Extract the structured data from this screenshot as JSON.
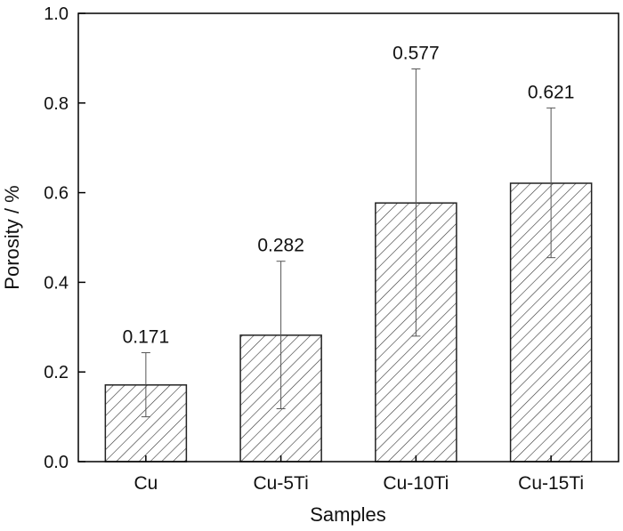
{
  "chart_data": {
    "type": "bar",
    "title": "",
    "xlabel": "Samples",
    "ylabel": "Porosity / %",
    "categories": [
      "Cu",
      "Cu-5Ti",
      "Cu-10Ti",
      "Cu-15Ti"
    ],
    "values": [
      0.171,
      0.282,
      0.577,
      0.621
    ],
    "value_labels": [
      "0.171",
      "0.282",
      "0.577",
      "0.621"
    ],
    "error_low": [
      0.1,
      0.118,
      0.28,
      0.455
    ],
    "error_high": [
      0.243,
      0.447,
      0.876,
      0.789
    ],
    "ylim": [
      0,
      1.0
    ],
    "yticks": [
      "0.0",
      "0.2",
      "0.4",
      "0.6",
      "0.8",
      "1.0"
    ],
    "grid": false,
    "legend": "none",
    "bar_fill": "hatched",
    "colors": {
      "axis": "#000000",
      "bar_stroke": "#222222",
      "hatch": "#333333",
      "error_bar": "#555555"
    }
  }
}
